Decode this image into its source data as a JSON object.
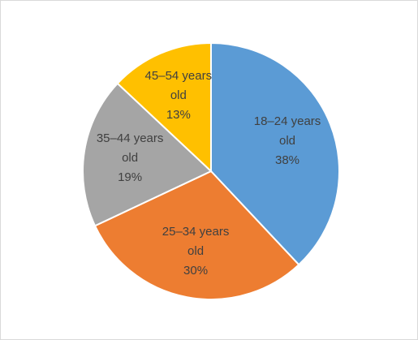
{
  "chart_data": {
    "type": "pie",
    "categories": [
      "18–24 years old",
      "25–34 years old",
      "35–44 years old",
      "45–54 years old"
    ],
    "values": [
      38,
      30,
      19,
      13
    ],
    "value_labels": [
      "38%",
      "30%",
      "19%",
      "13%"
    ],
    "colors": [
      "#5b9bd5",
      "#ed7d31",
      "#a5a5a5",
      "#ffc000"
    ]
  }
}
